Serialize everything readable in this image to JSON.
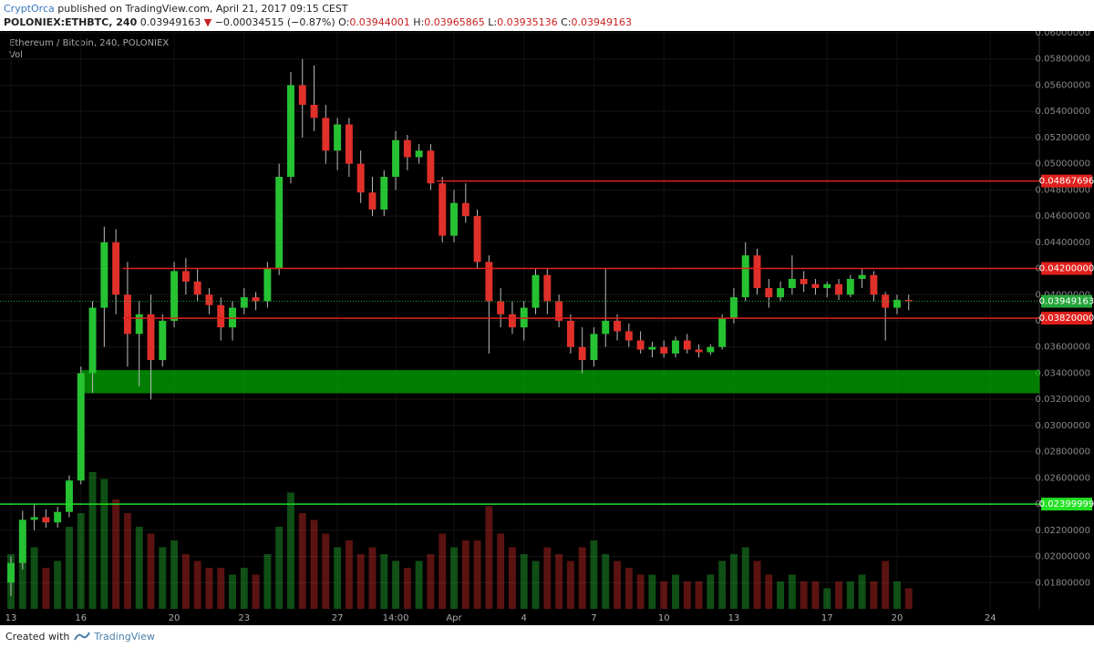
{
  "header": {
    "author": "CryptOrca",
    "published": "published on TradingView.com, April 21, 2017 09:15 CEST",
    "symbol": "POLONIEX:ETHBTC, 240",
    "last": "0.03949163",
    "arrow": "▼",
    "change": "−0.00034515 (−0.87%)",
    "open_label": "O:",
    "open": "0.03944001",
    "high_label": "H:",
    "high": "0.03965865",
    "low_label": "L:",
    "low": "0.03935136",
    "close_label": "C:",
    "close": "0.03949163"
  },
  "chart_data": {
    "type": "candlestick",
    "title": "Ethereum / Bitcoin, 240, POLONIEX",
    "volume_label": "Vol",
    "up_color": "#26c232",
    "down_color": "#e0302a",
    "wick_color": "#bbbbbb",
    "xlim": [
      -0.94,
      88.2
    ],
    "ylim": [
      0.016,
      0.06
    ],
    "xticks": [
      {
        "value": 0,
        "label": "13"
      },
      {
        "value": 6,
        "label": "16"
      },
      {
        "value": 14,
        "label": "20"
      },
      {
        "value": 20,
        "label": "23"
      },
      {
        "value": 28,
        "label": "27"
      },
      {
        "value": 33,
        "label": "14:00"
      },
      {
        "value": 38,
        "label": "Apr"
      },
      {
        "value": 44,
        "label": "4"
      },
      {
        "value": 50,
        "label": "7"
      },
      {
        "value": 56,
        "label": "10"
      },
      {
        "value": 62,
        "label": "13"
      },
      {
        "value": 70,
        "label": "17"
      },
      {
        "value": 76,
        "label": "20"
      },
      {
        "value": 84,
        "label": "24"
      }
    ],
    "yticks": [
      {
        "value": 0.018,
        "label": "0.01800000"
      },
      {
        "value": 0.02,
        "label": "0.02000000"
      },
      {
        "value": 0.022,
        "label": "0.02200000"
      },
      {
        "value": 0.024,
        "label": "0.02400000"
      },
      {
        "value": 0.026,
        "label": "0.02600000"
      },
      {
        "value": 0.028,
        "label": "0.02800000"
      },
      {
        "value": 0.03,
        "label": "0.03000000"
      },
      {
        "value": 0.032,
        "label": "0.03200000"
      },
      {
        "value": 0.034,
        "label": "0.03400000"
      },
      {
        "value": 0.036,
        "label": "0.03600000"
      },
      {
        "value": 0.038,
        "label": "0.03800000"
      },
      {
        "value": 0.04,
        "label": "0.04000000"
      },
      {
        "value": 0.042,
        "label": "0.04200000"
      },
      {
        "value": 0.044,
        "label": "0.04400000"
      },
      {
        "value": 0.046,
        "label": "0.04600000"
      },
      {
        "value": 0.048,
        "label": "0.04800000"
      },
      {
        "value": 0.05,
        "label": "0.05000000"
      },
      {
        "value": 0.052,
        "label": "0.05200000"
      },
      {
        "value": 0.054,
        "label": "0.05400000"
      },
      {
        "value": 0.056,
        "label": "0.05600000"
      },
      {
        "value": 0.058,
        "label": "0.05800000"
      },
      {
        "value": 0.06,
        "label": "0.06000000"
      }
    ],
    "ohlc": [
      [
        0.018,
        0.02,
        0.017,
        0.0195
      ],
      [
        0.0195,
        0.0235,
        0.019,
        0.0228
      ],
      [
        0.0228,
        0.024,
        0.022,
        0.023
      ],
      [
        0.023,
        0.0236,
        0.0222,
        0.0226
      ],
      [
        0.0226,
        0.0238,
        0.0222,
        0.0234
      ],
      [
        0.0234,
        0.0262,
        0.023,
        0.0258
      ],
      [
        0.0258,
        0.0345,
        0.0255,
        0.034
      ],
      [
        0.034,
        0.0395,
        0.0325,
        0.039
      ],
      [
        0.039,
        0.0452,
        0.036,
        0.044
      ],
      [
        0.044,
        0.045,
        0.0385,
        0.04
      ],
      [
        0.04,
        0.0425,
        0.0345,
        0.037
      ],
      [
        0.037,
        0.0395,
        0.033,
        0.0385
      ],
      [
        0.0385,
        0.04,
        0.032,
        0.035
      ],
      [
        0.035,
        0.0385,
        0.0345,
        0.038
      ],
      [
        0.038,
        0.0425,
        0.0375,
        0.0418
      ],
      [
        0.0418,
        0.0428,
        0.04,
        0.041
      ],
      [
        0.041,
        0.042,
        0.0395,
        0.04
      ],
      [
        0.04,
        0.0405,
        0.0385,
        0.0392
      ],
      [
        0.0392,
        0.0398,
        0.0365,
        0.0375
      ],
      [
        0.0375,
        0.0395,
        0.0365,
        0.039
      ],
      [
        0.039,
        0.0405,
        0.0385,
        0.0398
      ],
      [
        0.0398,
        0.0402,
        0.0388,
        0.0395
      ],
      [
        0.0395,
        0.0425,
        0.039,
        0.042
      ],
      [
        0.042,
        0.05,
        0.0415,
        0.049
      ],
      [
        0.049,
        0.057,
        0.0485,
        0.056
      ],
      [
        0.056,
        0.058,
        0.052,
        0.0545
      ],
      [
        0.0545,
        0.0575,
        0.0525,
        0.0535
      ],
      [
        0.0535,
        0.0545,
        0.05,
        0.051
      ],
      [
        0.051,
        0.0535,
        0.0495,
        0.053
      ],
      [
        0.053,
        0.0535,
        0.049,
        0.05
      ],
      [
        0.05,
        0.051,
        0.047,
        0.0478
      ],
      [
        0.0478,
        0.049,
        0.046,
        0.0465
      ],
      [
        0.0465,
        0.0495,
        0.046,
        0.049
      ],
      [
        0.049,
        0.0525,
        0.048,
        0.0518
      ],
      [
        0.0518,
        0.0522,
        0.0495,
        0.0505
      ],
      [
        0.0505,
        0.0515,
        0.05,
        0.051
      ],
      [
        0.051,
        0.0515,
        0.048,
        0.0485
      ],
      [
        0.0485,
        0.049,
        0.044,
        0.0445
      ],
      [
        0.0445,
        0.048,
        0.044,
        0.047
      ],
      [
        0.047,
        0.0485,
        0.0455,
        0.046
      ],
      [
        0.046,
        0.0465,
        0.042,
        0.0425
      ],
      [
        0.0425,
        0.043,
        0.0355,
        0.0395
      ],
      [
        0.0395,
        0.0405,
        0.0375,
        0.0385
      ],
      [
        0.0385,
        0.0395,
        0.037,
        0.0375
      ],
      [
        0.0375,
        0.0395,
        0.0365,
        0.039
      ],
      [
        0.039,
        0.042,
        0.0385,
        0.0415
      ],
      [
        0.0415,
        0.042,
        0.0385,
        0.0395
      ],
      [
        0.0395,
        0.04,
        0.0375,
        0.038
      ],
      [
        0.038,
        0.0385,
        0.0355,
        0.036
      ],
      [
        0.036,
        0.0375,
        0.034,
        0.035
      ],
      [
        0.035,
        0.0375,
        0.0345,
        0.037
      ],
      [
        0.037,
        0.042,
        0.036,
        0.038
      ],
      [
        0.038,
        0.0385,
        0.0365,
        0.0372
      ],
      [
        0.0372,
        0.0378,
        0.036,
        0.0365
      ],
      [
        0.0365,
        0.0372,
        0.0355,
        0.0358
      ],
      [
        0.0358,
        0.0364,
        0.0352,
        0.036
      ],
      [
        0.036,
        0.0365,
        0.0352,
        0.0355
      ],
      [
        0.0355,
        0.0368,
        0.0352,
        0.0365
      ],
      [
        0.0365,
        0.037,
        0.0355,
        0.0358
      ],
      [
        0.0358,
        0.0362,
        0.0352,
        0.0356
      ],
      [
        0.0356,
        0.0362,
        0.0354,
        0.036
      ],
      [
        0.036,
        0.0385,
        0.0358,
        0.0382
      ],
      [
        0.0382,
        0.0405,
        0.0378,
        0.0398
      ],
      [
        0.0398,
        0.044,
        0.0395,
        0.043
      ],
      [
        0.043,
        0.0435,
        0.04,
        0.0405
      ],
      [
        0.0405,
        0.0412,
        0.039,
        0.0398
      ],
      [
        0.0398,
        0.041,
        0.0395,
        0.0405
      ],
      [
        0.0405,
        0.043,
        0.04,
        0.0412
      ],
      [
        0.0412,
        0.0418,
        0.0402,
        0.0408
      ],
      [
        0.0408,
        0.0412,
        0.04,
        0.0405
      ],
      [
        0.0405,
        0.041,
        0.0398,
        0.0408
      ],
      [
        0.0408,
        0.0412,
        0.0396,
        0.04
      ],
      [
        0.04,
        0.0415,
        0.0398,
        0.0412
      ],
      [
        0.0412,
        0.042,
        0.0405,
        0.0415
      ],
      [
        0.0415,
        0.0418,
        0.0395,
        0.04
      ],
      [
        0.04,
        0.0402,
        0.0365,
        0.039
      ],
      [
        0.039,
        0.04,
        0.0385,
        0.0396
      ],
      [
        0.0396,
        0.04,
        0.0388,
        0.0395
      ]
    ],
    "volume": [
      40,
      50,
      45,
      30,
      35,
      60,
      70,
      100,
      95,
      80,
      70,
      60,
      55,
      45,
      50,
      40,
      35,
      30,
      30,
      25,
      30,
      25,
      40,
      60,
      85,
      70,
      65,
      55,
      45,
      50,
      40,
      45,
      40,
      35,
      30,
      35,
      40,
      55,
      45,
      50,
      50,
      75,
      55,
      45,
      40,
      35,
      45,
      40,
      35,
      45,
      50,
      40,
      35,
      30,
      25,
      25,
      20,
      25,
      20,
      20,
      25,
      35,
      40,
      45,
      35,
      25,
      20,
      25,
      20,
      20,
      15,
      20,
      20,
      25,
      20,
      35,
      20,
      15
    ],
    "zones": [
      {
        "from_x": 6,
        "low": 0.0325,
        "high": 0.0342,
        "color": "#00b400"
      }
    ],
    "levels": [
      {
        "value": 0.04867696,
        "label": "0.04867696",
        "color": "#e0201c",
        "from_x": 36.5
      },
      {
        "value": 0.042,
        "label": "0.04200000",
        "color": "#e0201c",
        "from_x": 9.6
      },
      {
        "value": 0.0382,
        "label": "0.03820000",
        "color": "#e0201c",
        "from_x": 9.6
      },
      {
        "value": 0.02399999,
        "label": "0.02399999",
        "color": "#22e022",
        "from_x": -0.94
      }
    ],
    "last_price": {
      "value": 0.03949163,
      "label": "0.03949163",
      "color": "#26a63a"
    }
  },
  "footer": {
    "created": "Created with",
    "brand": "TradingView"
  }
}
